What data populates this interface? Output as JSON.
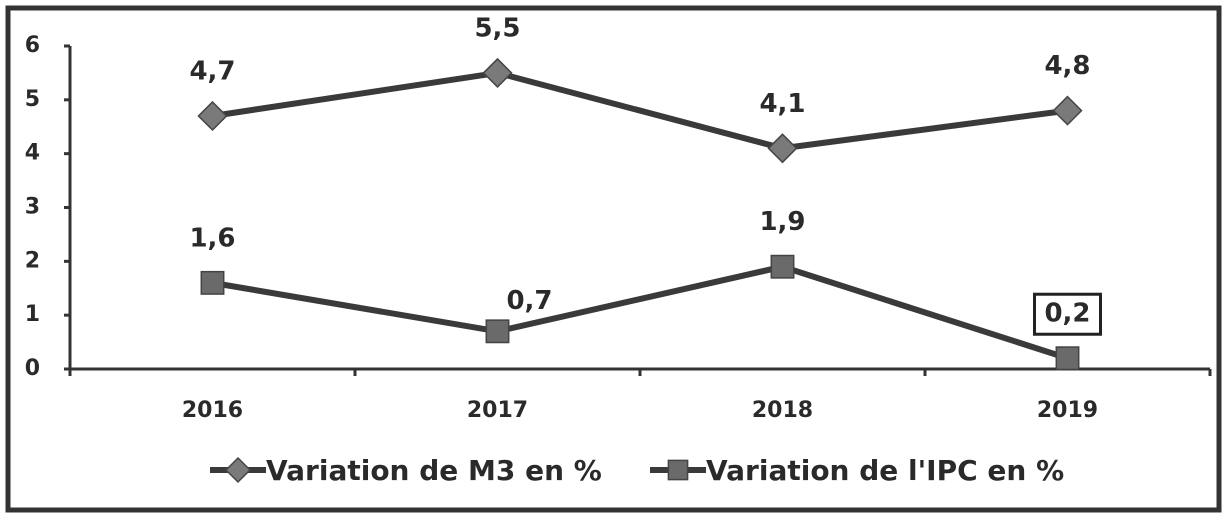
{
  "chart_data": {
    "type": "line",
    "categories": [
      "2016",
      "2017",
      "2018",
      "2019"
    ],
    "series": [
      {
        "name": "Variation de M3 en %",
        "color": "#7a7a7a",
        "marker": "diamond",
        "values": [
          4.7,
          5.5,
          4.1,
          4.8
        ],
        "value_labels": [
          "4,7",
          "5,5",
          "4,1",
          "4,8"
        ]
      },
      {
        "name": "Variation de l'IPC en %",
        "color": "#6a6a6a",
        "marker": "square",
        "values": [
          1.6,
          0.7,
          1.9,
          0.2
        ],
        "value_labels": [
          "1,6",
          "0,7",
          "1,9",
          "0,2"
        ]
      }
    ],
    "ylim": [
      0,
      6
    ],
    "yticks": [
      0,
      1,
      2,
      3,
      4,
      5,
      6
    ],
    "grid": false,
    "legend": "bottom"
  }
}
